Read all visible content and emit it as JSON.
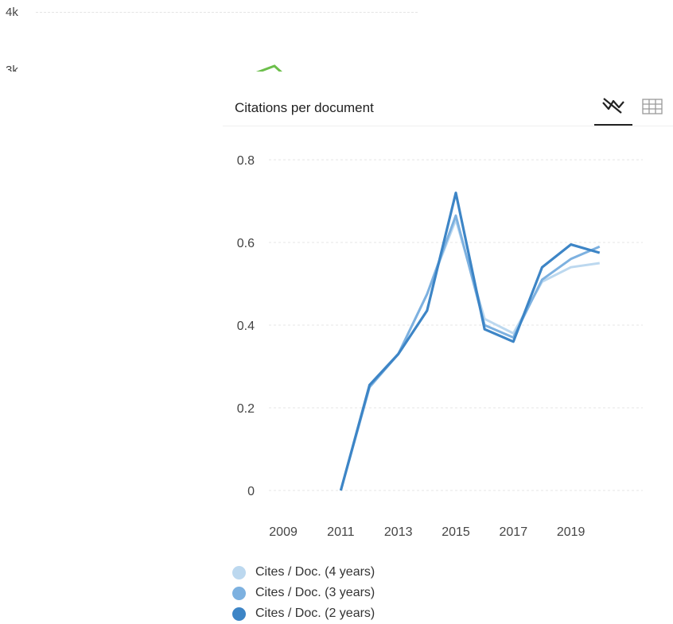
{
  "background_chart": {
    "tick_labels": [
      "4k",
      "3k"
    ],
    "line_color": "#6cbf4b"
  },
  "card": {
    "title": "Citations per document",
    "tabs": [
      {
        "name": "chart",
        "icon": "line-chart-icon",
        "active": true
      },
      {
        "name": "table",
        "icon": "table-grid-icon",
        "active": false
      }
    ]
  },
  "chart_data": {
    "type": "line",
    "title": "Citations per document",
    "xlabel": "",
    "ylabel": "",
    "x_ticks": [
      "2009",
      "2011",
      "2013",
      "2015",
      "2017",
      "2019"
    ],
    "y_ticks": [
      "0",
      "0.2",
      "0.4",
      "0.6",
      "0.8"
    ],
    "xlim": [
      2008.5,
      2021.5
    ],
    "ylim": [
      0,
      0.8
    ],
    "grid": true,
    "legend_position": "bottom-left",
    "x": [
      2011,
      2012,
      2013,
      2014,
      2015,
      2016,
      2017,
      2018,
      2019,
      2020
    ],
    "series": [
      {
        "name": "Cites / Doc. (4 years)",
        "color": "#bcd8ef",
        "values": [
          0.0,
          0.25,
          0.33,
          0.475,
          0.655,
          0.415,
          0.38,
          0.505,
          0.54,
          0.55
        ]
      },
      {
        "name": "Cites / Doc. (3 years)",
        "color": "#7db1e0",
        "values": [
          0.0,
          0.25,
          0.33,
          0.475,
          0.665,
          0.4,
          0.37,
          0.51,
          0.56,
          0.59
        ]
      },
      {
        "name": "Cites / Doc. (2 years)",
        "color": "#3d85c6",
        "values": [
          0.0,
          0.255,
          0.33,
          0.435,
          0.72,
          0.39,
          0.36,
          0.54,
          0.595,
          0.575
        ]
      }
    ]
  }
}
